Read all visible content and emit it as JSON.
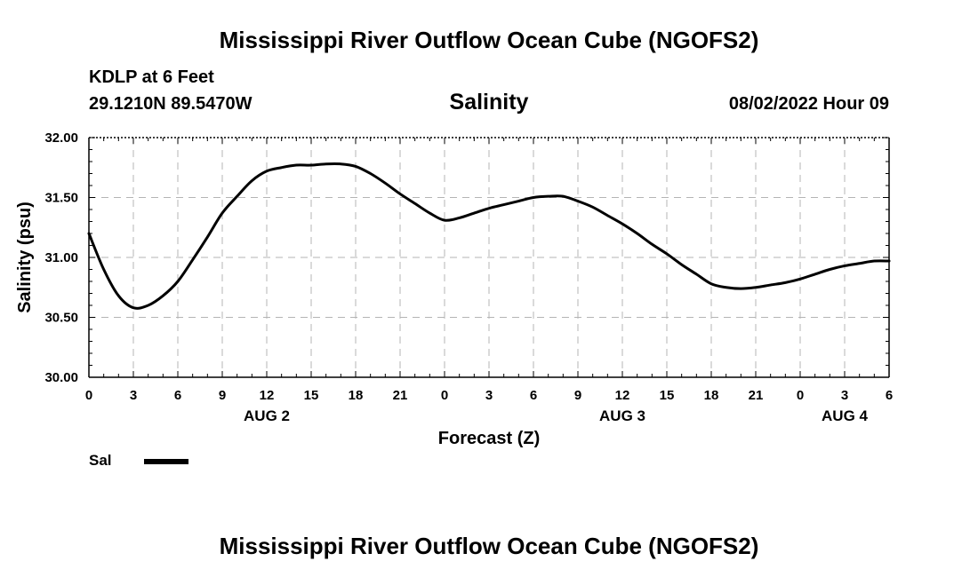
{
  "header": {
    "title": "Mississippi River Outflow Ocean Cube (NGOFS2)",
    "station": "KDLP at 6 Feet",
    "coords": "29.1210N  89.5470W",
    "subtitle": "Salinity",
    "datetime": "08/02/2022 Hour 09"
  },
  "footer": {
    "title": "Mississippi River Outflow Ocean Cube (NGOFS2)"
  },
  "legend": {
    "label": "Sal"
  },
  "chart_data": {
    "type": "line",
    "title": "Salinity",
    "xlabel": "Forecast (Z)",
    "ylabel": "Salinity (psu)",
    "xlim": [
      0,
      54
    ],
    "ylim": [
      30.0,
      32.0
    ],
    "x_tick_values": [
      0,
      3,
      6,
      9,
      12,
      15,
      18,
      21,
      24,
      27,
      30,
      33,
      36,
      39,
      42,
      45,
      48,
      51,
      54
    ],
    "x_tick_labels": [
      "0",
      "3",
      "6",
      "9",
      "12",
      "15",
      "18",
      "21",
      "0",
      "3",
      "6",
      "9",
      "12",
      "15",
      "18",
      "21",
      "0",
      "3",
      "6"
    ],
    "date_labels": [
      {
        "x": 12,
        "label": "AUG 2"
      },
      {
        "x": 36,
        "label": "AUG 3"
      },
      {
        "x": 51,
        "label": "AUG 4"
      }
    ],
    "y_tick_values": [
      30.0,
      30.5,
      31.0,
      31.5,
      32.0
    ],
    "y_tick_labels": [
      "30.00",
      "30.50",
      "31.00",
      "31.50",
      "32.00"
    ],
    "grid": true,
    "legend_position": "bottom-left",
    "series": [
      {
        "name": "Sal",
        "color": "#000000",
        "x": [
          0,
          1,
          2,
          3,
          4,
          5,
          6,
          7,
          8,
          9,
          10,
          11,
          12,
          13,
          14,
          15,
          16,
          17,
          18,
          19,
          20,
          21,
          22,
          23,
          24,
          25,
          26,
          27,
          28,
          29,
          30,
          31,
          32,
          33,
          34,
          35,
          36,
          37,
          38,
          39,
          40,
          41,
          42,
          43,
          44,
          45,
          46,
          47,
          48,
          49,
          50,
          51,
          52,
          53,
          54
        ],
        "values": [
          31.2,
          30.9,
          30.68,
          30.58,
          30.6,
          30.68,
          30.8,
          30.98,
          31.17,
          31.37,
          31.51,
          31.64,
          31.72,
          31.75,
          31.77,
          31.77,
          31.78,
          31.78,
          31.76,
          31.7,
          31.62,
          31.53,
          31.45,
          31.37,
          31.31,
          31.33,
          31.37,
          31.41,
          31.44,
          31.47,
          31.5,
          31.51,
          31.51,
          31.47,
          31.42,
          31.35,
          31.28,
          31.2,
          31.11,
          31.03,
          30.94,
          30.86,
          30.78,
          30.75,
          30.74,
          30.75,
          30.77,
          30.79,
          30.82,
          30.86,
          30.9,
          30.93,
          30.95,
          30.97,
          30.97
        ]
      }
    ]
  }
}
